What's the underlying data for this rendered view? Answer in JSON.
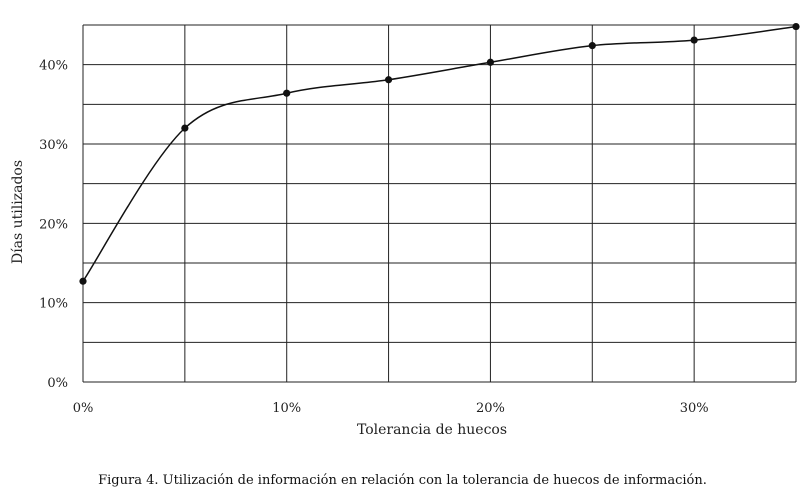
{
  "caption": "Figura 4. Utilización de información en relación con la tolerancia de huecos de información.",
  "chart_data": {
    "type": "line",
    "title": "",
    "xlabel": "Tolerancia de huecos",
    "ylabel": "Días utilizados",
    "x": [
      0,
      5,
      10,
      15,
      20,
      25,
      30,
      35
    ],
    "series": [
      {
        "values": [
          12.7,
          32.0,
          36.4,
          38.1,
          40.3,
          42.4,
          43.1,
          44.8
        ]
      }
    ],
    "xlim": [
      0,
      35
    ],
    "ylim": [
      0,
      45
    ],
    "xticks": [
      0,
      10,
      20,
      30
    ],
    "xtick_labels": [
      "0%",
      "10%",
      "20%",
      "30%"
    ],
    "yticks": [
      0,
      10,
      20,
      30,
      40
    ],
    "ytick_labels": [
      "0%",
      "10%",
      "20%",
      "30%",
      "40%"
    ],
    "x_gridlines": [
      0,
      5,
      10,
      15,
      20,
      25,
      30,
      35
    ],
    "y_gridlines": [
      0,
      5,
      10,
      15,
      20,
      25,
      30,
      35,
      40,
      45
    ],
    "grid": true,
    "line_color": "#111111",
    "marker_color": "#111111"
  }
}
